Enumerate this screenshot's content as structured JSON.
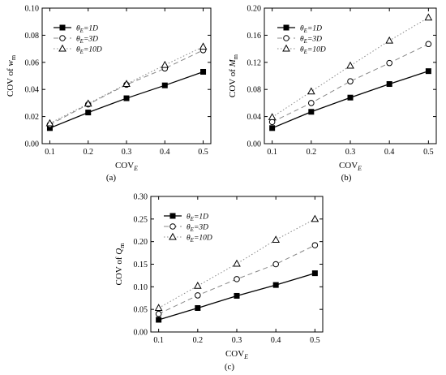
{
  "chart_data": [
    {
      "type": "line",
      "panel_label": "(a)",
      "xlabel": "COV",
      "xlabel_sub": "E",
      "ylabel": "COV of w",
      "ylabel_sub": "m",
      "xlim": [
        0.08,
        0.52
      ],
      "ylim": [
        0,
        0.1
      ],
      "xticks": [
        "0.1",
        "0.2",
        "0.3",
        "0.4",
        "0.5"
      ],
      "yticks": [
        "0.00",
        "0.02",
        "0.04",
        "0.06",
        "0.08",
        "0.10"
      ],
      "x": [
        0.1,
        0.2,
        0.3,
        0.4,
        0.5
      ],
      "series": [
        {
          "name": "θ_E=1D",
          "label_main": "θ",
          "label_sub": "E",
          "label_rest": "=1D",
          "marker": "square-filled",
          "line": "solid",
          "values": [
            0.0115,
            0.023,
            0.0335,
            0.043,
            0.053
          ]
        },
        {
          "name": "θ_E=3D",
          "label_main": "θ",
          "label_sub": "E",
          "label_rest": "=3D",
          "marker": "circle-open",
          "line": "dashed",
          "values": [
            0.014,
            0.029,
            0.0435,
            0.0555,
            0.069
          ]
        },
        {
          "name": "θ_E=10D",
          "label_main": "θ",
          "label_sub": "E",
          "label_rest": "=10D",
          "marker": "triangle-open",
          "line": "dotted",
          "values": [
            0.015,
            0.0295,
            0.044,
            0.058,
            0.0715
          ]
        }
      ]
    },
    {
      "type": "line",
      "panel_label": "(b)",
      "xlabel": "COV",
      "xlabel_sub": "E",
      "ylabel": "COV of M",
      "ylabel_sub": "m",
      "xlim": [
        0.08,
        0.52
      ],
      "ylim": [
        0,
        0.2
      ],
      "xticks": [
        "0.1",
        "0.2",
        "0.3",
        "0.4",
        "0.5"
      ],
      "yticks": [
        "0.00",
        "0.04",
        "0.08",
        "0.12",
        "0.16",
        "0.20"
      ],
      "x": [
        0.1,
        0.2,
        0.3,
        0.4,
        0.5
      ],
      "series": [
        {
          "name": "θ_E=1D",
          "label_main": "θ",
          "label_sub": "E",
          "label_rest": "=1D",
          "marker": "square-filled",
          "line": "solid",
          "values": [
            0.023,
            0.047,
            0.068,
            0.088,
            0.107
          ]
        },
        {
          "name": "θ_E=3D",
          "label_main": "θ",
          "label_sub": "E",
          "label_rest": "=3D",
          "marker": "circle-open",
          "line": "dashed",
          "values": [
            0.032,
            0.06,
            0.092,
            0.119,
            0.147
          ]
        },
        {
          "name": "θ_E=10D",
          "label_main": "θ",
          "label_sub": "E",
          "label_rest": "=10D",
          "marker": "triangle-open",
          "line": "dotted",
          "values": [
            0.039,
            0.077,
            0.115,
            0.152,
            0.186
          ]
        }
      ]
    },
    {
      "type": "line",
      "panel_label": "(c)",
      "xlabel": "COV",
      "xlabel_sub": "E",
      "ylabel": "COV of Q",
      "ylabel_sub": "m",
      "xlim": [
        0.08,
        0.52
      ],
      "ylim": [
        0,
        0.3
      ],
      "xticks": [
        "0.1",
        "0.2",
        "0.3",
        "0.4",
        "0.5"
      ],
      "yticks": [
        "0.00",
        "0.05",
        "0.10",
        "0.15",
        "0.20",
        "0.25",
        "0.30"
      ],
      "x": [
        0.1,
        0.2,
        0.3,
        0.4,
        0.5
      ],
      "series": [
        {
          "name": "θ_E=1D",
          "label_main": "θ",
          "label_sub": "E",
          "label_rest": "=1D",
          "marker": "square-filled",
          "line": "solid",
          "values": [
            0.027,
            0.053,
            0.08,
            0.104,
            0.13
          ]
        },
        {
          "name": "θ_E=3D",
          "label_main": "θ",
          "label_sub": "E",
          "label_rest": "=3D",
          "marker": "circle-open",
          "line": "dashed",
          "values": [
            0.04,
            0.081,
            0.117,
            0.15,
            0.192
          ]
        },
        {
          "name": "θ_E=10D",
          "label_main": "θ",
          "label_sub": "E",
          "label_rest": "=10D",
          "marker": "triangle-open",
          "line": "dotted",
          "values": [
            0.053,
            0.102,
            0.151,
            0.204,
            0.25
          ]
        }
      ]
    }
  ]
}
